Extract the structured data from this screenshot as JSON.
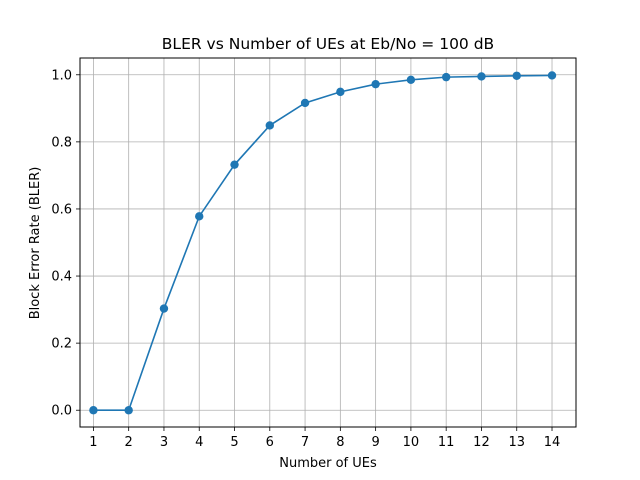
{
  "chart_data": {
    "type": "line",
    "title": "BLER vs Number of UEs at Eb/No = 100 dB",
    "xlabel": "Number of UEs",
    "ylabel": "Block Error Rate (BLER)",
    "x": [
      1,
      2,
      3,
      4,
      5,
      6,
      7,
      8,
      9,
      10,
      11,
      12,
      13,
      14
    ],
    "xlim": [
      0.62,
      14.68
    ],
    "ylim": [
      -0.05,
      1.05
    ],
    "xticks": [
      "1",
      "2",
      "3",
      "4",
      "5",
      "6",
      "7",
      "8",
      "9",
      "10",
      "11",
      "12",
      "13",
      "14"
    ],
    "yticks": [
      "0.0",
      "0.2",
      "0.4",
      "0.6",
      "0.8",
      "1.0"
    ],
    "grid": true,
    "series": [
      {
        "values": [
          0.0,
          0.0,
          0.303,
          0.578,
          0.732,
          0.849,
          0.916,
          0.949,
          0.972,
          0.985,
          0.993,
          0.995,
          0.997,
          0.998
        ],
        "color": "#1f77b4",
        "marker": "circle"
      }
    ]
  }
}
